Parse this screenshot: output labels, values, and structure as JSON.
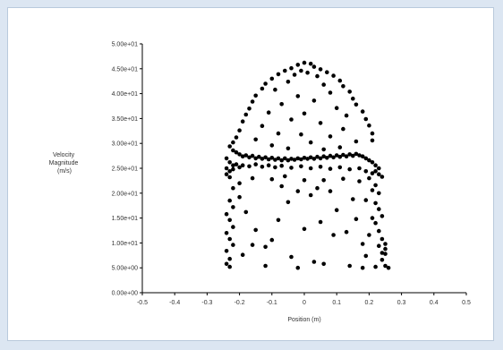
{
  "chart_data": {
    "type": "scatter",
    "title": "",
    "xlabel": "Position (m)",
    "ylabel_lines": [
      "Velocity",
      "Magnitude",
      "(m/s)"
    ],
    "xlim": [
      -0.5,
      0.5
    ],
    "ylim": [
      0,
      50
    ],
    "x_ticks": [
      "-0.5",
      "-0.4",
      "-0.3",
      "-0.2",
      "-0.1",
      "0",
      "0.1",
      "0.2",
      "0.3",
      "0.4",
      "0.5"
    ],
    "x_tick_values": [
      -0.5,
      -0.4,
      -0.3,
      -0.2,
      -0.1,
      0,
      0.1,
      0.2,
      0.3,
      0.4,
      0.5
    ],
    "y_ticks": [
      "0.00e+00",
      "5.00e+00",
      "1.00e+01",
      "1.50e+01",
      "2.00e+01",
      "2.50e+01",
      "3.00e+01",
      "3.50e+01",
      "4.00e+01",
      "4.50e+01",
      "5.00e+01"
    ],
    "y_tick_values": [
      0,
      5,
      10,
      15,
      20,
      25,
      30,
      35,
      40,
      45,
      50
    ],
    "grid": false,
    "legend": "none",
    "marker_color": "#000000",
    "points": [
      [
        0.0,
        46.2
      ],
      [
        0.02,
        46.0
      ],
      [
        -0.02,
        45.8
      ],
      [
        0.03,
        45.4
      ],
      [
        -0.04,
        45.1
      ],
      [
        0.05,
        44.9
      ],
      [
        -0.06,
        44.6
      ],
      [
        0.07,
        44.3
      ],
      [
        -0.01,
        44.6
      ],
      [
        0.01,
        44.2
      ],
      [
        -0.08,
        43.9
      ],
      [
        0.09,
        43.6
      ],
      [
        -0.03,
        43.8
      ],
      [
        0.04,
        43.5
      ],
      [
        -0.1,
        43.0
      ],
      [
        0.11,
        42.6
      ],
      [
        -0.12,
        42.0
      ],
      [
        0.12,
        41.5
      ],
      [
        -0.13,
        41.0
      ],
      [
        0.14,
        40.4
      ],
      [
        -0.05,
        42.4
      ],
      [
        0.06,
        41.8
      ],
      [
        -0.09,
        40.8
      ],
      [
        0.08,
        40.2
      ],
      [
        -0.15,
        39.6
      ],
      [
        0.15,
        39.0
      ],
      [
        -0.16,
        38.4
      ],
      [
        0.16,
        37.8
      ],
      [
        -0.17,
        37.0
      ],
      [
        0.18,
        36.4
      ],
      [
        -0.02,
        39.5
      ],
      [
        0.03,
        38.6
      ],
      [
        -0.07,
        37.9
      ],
      [
        0.1,
        37.1
      ],
      [
        -0.11,
        36.2
      ],
      [
        0.13,
        35.6
      ],
      [
        -0.18,
        35.8
      ],
      [
        0.19,
        34.9
      ],
      [
        -0.19,
        34.4
      ],
      [
        0.2,
        33.6
      ],
      [
        0.0,
        36.0
      ],
      [
        -0.04,
        34.8
      ],
      [
        0.05,
        34.1
      ],
      [
        -0.13,
        33.5
      ],
      [
        0.12,
        32.9
      ],
      [
        -0.2,
        32.6
      ],
      [
        0.21,
        32.0
      ],
      [
        -0.21,
        31.2
      ],
      [
        0.21,
        30.6
      ],
      [
        -0.22,
        30.2
      ],
      [
        -0.08,
        32.0
      ],
      [
        0.08,
        31.4
      ],
      [
        -0.01,
        31.8
      ],
      [
        0.02,
        30.2
      ],
      [
        -0.15,
        30.8
      ],
      [
        0.16,
        30.4
      ],
      [
        -0.1,
        29.6
      ],
      [
        0.11,
        29.2
      ],
      [
        -0.05,
        29.0
      ],
      [
        0.06,
        28.8
      ],
      [
        -0.23,
        29.4
      ],
      [
        -0.22,
        28.6
      ],
      [
        -0.21,
        28.2
      ],
      [
        -0.2,
        27.8
      ],
      [
        -0.19,
        27.4
      ],
      [
        -0.18,
        27.6
      ],
      [
        -0.17,
        27.2
      ],
      [
        -0.16,
        27.5
      ],
      [
        -0.15,
        27.0
      ],
      [
        -0.14,
        27.3
      ],
      [
        -0.13,
        26.9
      ],
      [
        -0.12,
        27.2
      ],
      [
        -0.11,
        26.8
      ],
      [
        -0.1,
        27.1
      ],
      [
        -0.09,
        26.7
      ],
      [
        -0.08,
        27.0
      ],
      [
        -0.07,
        26.6
      ],
      [
        -0.06,
        27.0
      ],
      [
        -0.05,
        26.6
      ],
      [
        -0.04,
        26.9
      ],
      [
        -0.03,
        26.7
      ],
      [
        -0.02,
        27.0
      ],
      [
        -0.01,
        26.8
      ],
      [
        0.0,
        27.1
      ],
      [
        0.01,
        26.9
      ],
      [
        0.02,
        27.2
      ],
      [
        0.03,
        26.9
      ],
      [
        0.04,
        27.3
      ],
      [
        0.05,
        27.0
      ],
      [
        0.06,
        27.4
      ],
      [
        0.07,
        27.1
      ],
      [
        0.08,
        27.5
      ],
      [
        0.09,
        27.2
      ],
      [
        0.1,
        27.6
      ],
      [
        0.11,
        27.3
      ],
      [
        0.12,
        27.7
      ],
      [
        0.13,
        27.4
      ],
      [
        0.14,
        27.8
      ],
      [
        0.15,
        27.5
      ],
      [
        0.16,
        27.9
      ],
      [
        0.17,
        27.6
      ],
      [
        0.18,
        27.4
      ],
      [
        0.19,
        27.0
      ],
      [
        0.2,
        26.6
      ],
      [
        0.21,
        26.2
      ],
      [
        0.22,
        25.6
      ],
      [
        0.23,
        25.0
      ],
      [
        0.22,
        24.4
      ],
      [
        0.23,
        23.8
      ],
      [
        0.24,
        23.3
      ],
      [
        -0.24,
        27.0
      ],
      [
        -0.23,
        26.2
      ],
      [
        -0.22,
        25.6
      ],
      [
        -0.24,
        25.0
      ],
      [
        -0.23,
        24.4
      ],
      [
        -0.24,
        23.8
      ],
      [
        -0.23,
        23.2
      ],
      [
        -0.22,
        24.8
      ],
      [
        -0.21,
        25.8
      ],
      [
        -0.2,
        25.2
      ],
      [
        -0.19,
        25.6
      ],
      [
        -0.17,
        25.4
      ],
      [
        -0.15,
        25.8
      ],
      [
        -0.13,
        25.3
      ],
      [
        -0.11,
        25.6
      ],
      [
        -0.09,
        25.2
      ],
      [
        -0.07,
        25.5
      ],
      [
        -0.04,
        25.1
      ],
      [
        -0.01,
        25.4
      ],
      [
        0.02,
        25.0
      ],
      [
        0.05,
        25.3
      ],
      [
        0.08,
        24.9
      ],
      [
        0.11,
        25.2
      ],
      [
        0.14,
        24.8
      ],
      [
        0.17,
        25.0
      ],
      [
        0.19,
        24.4
      ],
      [
        0.21,
        24.0
      ],
      [
        0.2,
        23.0
      ],
      [
        -0.06,
        23.4
      ],
      [
        0.0,
        22.6
      ],
      [
        -0.1,
        22.8
      ],
      [
        0.06,
        22.6
      ],
      [
        0.12,
        22.9
      ],
      [
        -0.16,
        23.0
      ],
      [
        0.17,
        22.4
      ],
      [
        -0.2,
        22.0
      ],
      [
        0.22,
        21.6
      ],
      [
        -0.22,
        21.0
      ],
      [
        0.21,
        20.6
      ],
      [
        0.23,
        20.0
      ],
      [
        -0.23,
        18.5
      ],
      [
        -0.22,
        17.2
      ],
      [
        -0.24,
        15.8
      ],
      [
        -0.23,
        14.6
      ],
      [
        -0.22,
        13.2
      ],
      [
        -0.24,
        12.0
      ],
      [
        -0.23,
        10.8
      ],
      [
        -0.22,
        9.6
      ],
      [
        -0.24,
        8.4
      ],
      [
        -0.23,
        6.8
      ],
      [
        -0.24,
        5.8
      ],
      [
        -0.23,
        5.2
      ],
      [
        0.22,
        18.0
      ],
      [
        0.23,
        16.8
      ],
      [
        0.24,
        15.4
      ],
      [
        0.22,
        14.0
      ],
      [
        0.23,
        12.4
      ],
      [
        0.24,
        10.8
      ],
      [
        0.23,
        9.4
      ],
      [
        0.24,
        8.0
      ],
      [
        0.25,
        9.8
      ],
      [
        0.25,
        8.8
      ],
      [
        0.25,
        7.8
      ],
      [
        0.24,
        6.6
      ],
      [
        0.25,
        5.4
      ],
      [
        0.22,
        5.2
      ],
      [
        0.26,
        5.0
      ],
      [
        0.2,
        11.6
      ],
      [
        0.21,
        15.0
      ],
      [
        0.19,
        18.6
      ],
      [
        -0.2,
        19.2
      ],
      [
        -0.18,
        16.2
      ],
      [
        -0.15,
        12.6
      ],
      [
        -0.12,
        9.2
      ],
      [
        -0.08,
        14.6
      ],
      [
        -0.05,
        18.2
      ],
      [
        -0.02,
        20.4
      ],
      [
        0.02,
        19.6
      ],
      [
        0.05,
        14.2
      ],
      [
        0.08,
        20.4
      ],
      [
        0.1,
        16.6
      ],
      [
        0.13,
        12.2
      ],
      [
        0.15,
        18.8
      ],
      [
        0.16,
        14.8
      ],
      [
        0.18,
        9.8
      ],
      [
        0.19,
        7.4
      ],
      [
        -0.1,
        10.6
      ],
      [
        -0.04,
        7.2
      ],
      [
        0.03,
        6.2
      ],
      [
        0.06,
        5.8
      ],
      [
        -0.12,
        5.4
      ],
      [
        -0.02,
        5.0
      ],
      [
        0.14,
        5.4
      ],
      [
        0.18,
        5.0
      ],
      [
        -0.19,
        7.6
      ],
      [
        -0.16,
        9.6
      ],
      [
        0.0,
        12.8
      ],
      [
        0.09,
        11.6
      ],
      [
        -0.07,
        21.4
      ],
      [
        0.04,
        21.0
      ]
    ]
  }
}
